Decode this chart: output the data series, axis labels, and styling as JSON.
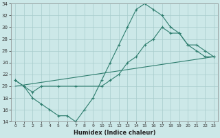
{
  "xlabel": "Humidex (Indice chaleur)",
  "bg_color": "#cce8e8",
  "line_color": "#2e7d6e",
  "grid_color": "#a8cccc",
  "xlim": [
    -0.5,
    23.5
  ],
  "ylim": [
    14,
    34
  ],
  "xticks": [
    0,
    1,
    2,
    3,
    4,
    5,
    6,
    7,
    8,
    9,
    10,
    11,
    12,
    13,
    14,
    15,
    16,
    17,
    18,
    19,
    20,
    21,
    22,
    23
  ],
  "yticks": [
    14,
    16,
    18,
    20,
    22,
    24,
    26,
    28,
    30,
    32,
    34
  ],
  "line1_x": [
    0,
    1,
    2,
    3,
    4,
    5,
    6,
    7,
    8,
    9,
    10,
    11,
    12,
    13,
    14,
    15,
    16,
    17,
    18,
    19,
    20,
    21,
    22,
    23
  ],
  "line1_y": [
    21,
    20,
    18,
    17,
    16,
    15,
    15,
    14,
    16,
    18,
    21,
    24,
    27,
    30,
    33,
    34,
    33,
    32,
    30,
    29,
    27,
    26,
    25,
    25
  ],
  "line2_x": [
    0,
    1,
    2,
    3,
    5,
    7,
    10,
    11,
    12,
    13,
    14,
    15,
    16,
    17,
    18,
    19,
    20,
    21,
    22,
    23
  ],
  "line2_y": [
    21,
    20,
    19,
    20,
    20,
    20,
    20,
    21,
    22,
    24,
    25,
    27,
    28,
    30,
    29,
    29,
    27,
    27,
    26,
    25
  ],
  "line3_x": [
    0,
    23
  ],
  "line3_y": [
    20,
    25
  ]
}
